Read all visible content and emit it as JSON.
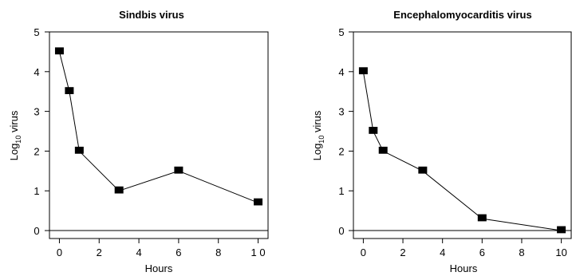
{
  "chart_data": [
    {
      "type": "line",
      "title": "Sindbis virus",
      "xlabel": "Hours",
      "ylabel_main": "Log",
      "ylabel_sub": "10",
      "ylabel_rest": " virus",
      "x": [
        0,
        0.5,
        1,
        3,
        6,
        10
      ],
      "values": [
        4.5,
        3.5,
        2.0,
        1.0,
        1.5,
        0.7
      ],
      "xlim": [
        -0.5,
        10.5
      ],
      "ylim": [
        -0.2,
        5.0
      ],
      "xticks": [
        "0",
        "2",
        "4",
        "6",
        "8",
        "1 0"
      ],
      "xtick_values": [
        0,
        2,
        4,
        6,
        8,
        10
      ],
      "yticks": [
        "0",
        "1",
        "2",
        "3",
        "4",
        "5"
      ],
      "ytick_values": [
        0,
        1,
        2,
        3,
        4,
        5
      ],
      "baseline": 0,
      "grid": false,
      "marker": "square",
      "color": "#000000"
    },
    {
      "type": "line",
      "title": "Encephalomyocarditis virus",
      "xlabel": "Hours",
      "ylabel_main": "Log",
      "ylabel_sub": "10",
      "ylabel_rest": " virus",
      "x": [
        0,
        0.5,
        1,
        3,
        6,
        10
      ],
      "values": [
        4.0,
        2.5,
        2.0,
        1.5,
        0.3,
        0.0
      ],
      "xlim": [
        -0.5,
        10.5
      ],
      "ylim": [
        -0.2,
        5.0
      ],
      "xticks": [
        "0",
        "2",
        "4",
        "6",
        "8",
        "10"
      ],
      "xtick_values": [
        0,
        2,
        4,
        6,
        8,
        10
      ],
      "yticks": [
        "0",
        "1",
        "2",
        "3",
        "4",
        "5"
      ],
      "ytick_values": [
        0,
        1,
        2,
        3,
        4,
        5
      ],
      "baseline": 0,
      "grid": false,
      "marker": "square",
      "color": "#000000"
    }
  ]
}
